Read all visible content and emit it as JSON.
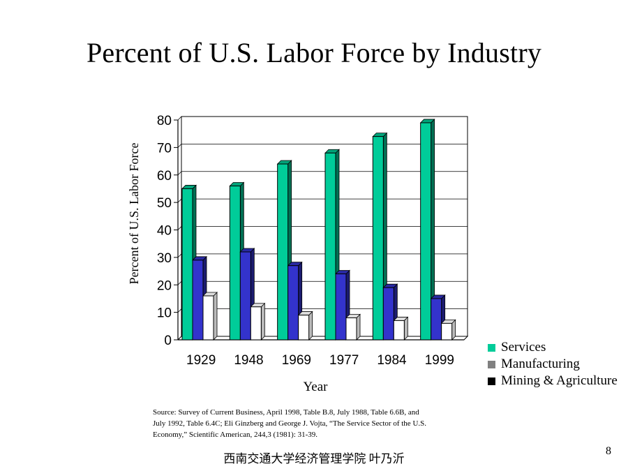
{
  "slide": {
    "title": "Percent of U.S. Labor Force by Industry",
    "source": "Source:  Survey of Current Business, April 1998, Table B.8, July 1988, Table 6.6B, and\nJuly 1992, Table 6.4C;  Eli Ginzberg and George J. Vojta, “The Service Sector of the U.S.\nEconomy,” Scientific American, 244,3 (1981): 31-39.",
    "footer": "西南交通大学经济管理学院   叶乃沂",
    "page_number": "8"
  },
  "chart_data": {
    "type": "bar",
    "title": "Percent of U.S. Labor Force by Industry",
    "xlabel": "Year",
    "ylabel": "Percent of U.S. Labor Force",
    "categories": [
      "1929",
      "1948",
      "1969",
      "1977",
      "1984",
      "1999"
    ],
    "ylim": [
      0,
      80
    ],
    "yticks": [
      0,
      10,
      20,
      30,
      40,
      50,
      60,
      70,
      80
    ],
    "grid": true,
    "legend_position": "bottom-right",
    "series": [
      {
        "name": "Services",
        "color": "#00cc99",
        "values": [
          55,
          56,
          64,
          68,
          74,
          79
        ]
      },
      {
        "name": "Manufacturing",
        "color": "#3333cc",
        "values": [
          29,
          32,
          27,
          24,
          19,
          15
        ]
      },
      {
        "name": "Mining & Agriculture",
        "color": "#ffffff",
        "values": [
          16,
          12,
          9,
          8,
          7,
          6
        ]
      }
    ],
    "legend_colors": [
      "#00cc99",
      "#808080",
      "#000000"
    ]
  }
}
